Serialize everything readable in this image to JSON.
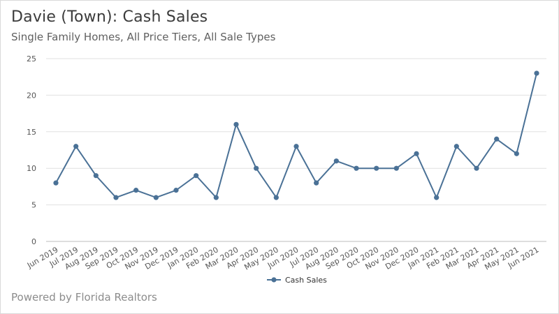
{
  "header": {
    "title": "Davie (Town): Cash Sales",
    "subtitle": "Single Family Homes, All Price Tiers, All Sale Types"
  },
  "footer": {
    "powered_by": "Powered by Florida Realtors"
  },
  "colors": {
    "series": "#4a7196",
    "grid": "#e0e0e0",
    "axis": "#bdbdbd"
  },
  "chart_data": {
    "type": "line",
    "title": "Davie (Town): Cash Sales",
    "subtitle": "Single Family Homes, All Price Tiers, All Sale Types",
    "xlabel": "",
    "ylabel": "",
    "ylim": [
      0,
      25
    ],
    "yticks": [
      0,
      5,
      10,
      15,
      20,
      25
    ],
    "grid": true,
    "legend": "bottom",
    "categories": [
      "Jun 2019",
      "Jul 2019",
      "Aug 2019",
      "Sep 2019",
      "Oct 2019",
      "Nov 2019",
      "Dec 2019",
      "Jan 2020",
      "Feb 2020",
      "Mar 2020",
      "Apr 2020",
      "May 2020",
      "Jun 2020",
      "Jul 2020",
      "Aug 2020",
      "Sep 2020",
      "Oct 2020",
      "Nov 2020",
      "Dec 2020",
      "Jan 2021",
      "Feb 2021",
      "Mar 2021",
      "Apr 2021",
      "May 2021",
      "Jun 2021"
    ],
    "series": [
      {
        "name": "Cash Sales",
        "values": [
          8,
          13,
          9,
          6,
          7,
          6,
          7,
          9,
          6,
          16,
          10,
          6,
          13,
          8,
          11,
          10,
          10,
          10,
          12,
          6,
          13,
          10,
          14,
          12,
          23
        ]
      }
    ]
  }
}
